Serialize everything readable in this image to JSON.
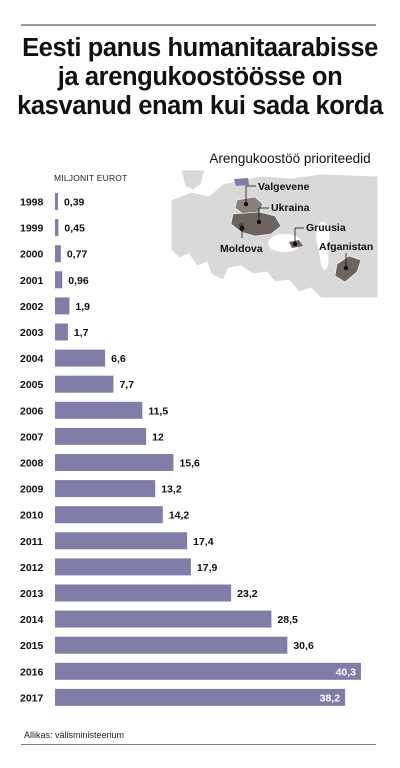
{
  "title": "Eesti panus humanitaarabisse\nja arengukoostöösse on\nkasvanud enam kui sada korda",
  "unit_label": "MILJONIT EUROT",
  "map": {
    "title": "Arengukoostöö prioriteedid",
    "labels": {
      "belarus": "Valgevene",
      "ukraine": "Ukraina",
      "georgia": "Gruusia",
      "moldova": "Moldova",
      "afghanistan": "Afganistan"
    }
  },
  "source": "Allikas: välisministeerium",
  "colors": {
    "bar": "#807da9",
    "rule": "#9a9a9a",
    "map_sea": "#ffffff",
    "map_land": "#d9d9d9",
    "map_highlight": "#6e645f",
    "estonia": "#807da9"
  },
  "chart_data": {
    "type": "bar",
    "orientation": "horizontal",
    "title": "",
    "xlabel": "MILJONIT EUROT",
    "ylabel": "",
    "categories": [
      "1998",
      "1999",
      "2000",
      "2001",
      "2002",
      "2003",
      "2004",
      "2005",
      "2006",
      "2007",
      "2008",
      "2009",
      "2010",
      "2011",
      "2012",
      "2013",
      "2014",
      "2015",
      "2016",
      "2017"
    ],
    "values": [
      0.39,
      0.45,
      0.77,
      0.96,
      1.9,
      1.7,
      6.6,
      7.7,
      11.5,
      12,
      15.6,
      13.2,
      14.2,
      17.4,
      17.9,
      23.2,
      28.5,
      30.6,
      40.3,
      38.2
    ],
    "value_labels": [
      "0,39",
      "0,45",
      "0,77",
      "0,96",
      "1,9",
      "1,7",
      "6,6",
      "7,7",
      "11,5",
      "12",
      "15,6",
      "13,2",
      "14,2",
      "17,4",
      "17,9",
      "23,2",
      "28,5",
      "30,6",
      "40,3",
      "38,2"
    ],
    "grid": false
  }
}
